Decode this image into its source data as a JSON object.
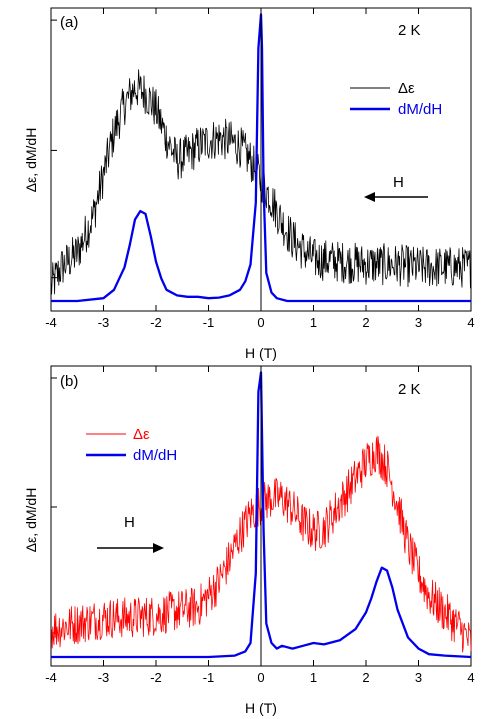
{
  "chart_data": [
    {
      "panel": "(a)",
      "type": "line",
      "xlabel": "H (T)",
      "ylabel": "Δε, dM/dH",
      "temperature": "2 K",
      "arrow_label": "H",
      "arrow_direction": "left",
      "xlim": [
        -4,
        4
      ],
      "ylim": [
        0,
        1
      ],
      "x_ticks": [
        "-4",
        "-3",
        "-2",
        "-1",
        "0",
        "1",
        "2",
        "3",
        "4"
      ],
      "y_ticks_shown": false,
      "grid": false,
      "legend_position": "top-right",
      "series": [
        {
          "name": "Δε",
          "color": "#000000",
          "noisy": true,
          "x": [
            -4.0,
            -3.8,
            -3.5,
            -3.2,
            -3.0,
            -2.8,
            -2.6,
            -2.4,
            -2.2,
            -2.0,
            -1.8,
            -1.6,
            -1.4,
            -1.2,
            -1.0,
            -0.8,
            -0.6,
            -0.4,
            -0.2,
            0.0,
            0.2,
            0.4,
            0.6,
            0.8,
            1.0,
            1.5,
            2.0,
            2.5,
            3.0,
            3.5,
            4.0
          ],
          "y": [
            0.05,
            0.12,
            0.17,
            0.3,
            0.45,
            0.6,
            0.7,
            0.76,
            0.74,
            0.68,
            0.58,
            0.5,
            0.52,
            0.55,
            0.57,
            0.58,
            0.57,
            0.55,
            0.5,
            0.43,
            0.36,
            0.28,
            0.22,
            0.18,
            0.15,
            0.14,
            0.13,
            0.13,
            0.12,
            0.12,
            0.12
          ]
        },
        {
          "name": "dM/dH",
          "color": "#0000ee",
          "noisy": false,
          "x": [
            -4.0,
            -3.5,
            -3.0,
            -2.8,
            -2.6,
            -2.5,
            -2.4,
            -2.3,
            -2.2,
            -2.1,
            -2.0,
            -1.9,
            -1.8,
            -1.6,
            -1.4,
            -1.2,
            -1.0,
            -0.8,
            -0.6,
            -0.4,
            -0.3,
            -0.2,
            -0.1,
            -0.05,
            0.0,
            0.02,
            0.05,
            0.1,
            0.2,
            0.3,
            0.5,
            1.0,
            2.0,
            3.0,
            4.0
          ],
          "y": [
            0.0,
            0.0,
            0.01,
            0.04,
            0.12,
            0.2,
            0.29,
            0.32,
            0.31,
            0.23,
            0.14,
            0.08,
            0.04,
            0.02,
            0.015,
            0.015,
            0.01,
            0.012,
            0.02,
            0.04,
            0.07,
            0.13,
            0.35,
            0.9,
            1.02,
            0.9,
            0.4,
            0.1,
            0.03,
            0.01,
            0.0,
            0.0,
            0.0,
            0.0,
            0.0
          ]
        }
      ]
    },
    {
      "panel": "(b)",
      "type": "line",
      "xlabel": "H (T)",
      "ylabel": "Δε, dM/dH",
      "temperature": "2 K",
      "arrow_label": "H",
      "arrow_direction": "right",
      "xlim": [
        -4,
        4
      ],
      "ylim": [
        0,
        1
      ],
      "x_ticks": [
        "-4",
        "-3",
        "-2",
        "-1",
        "0",
        "1",
        "2",
        "3",
        "4"
      ],
      "y_ticks_shown": false,
      "grid": false,
      "legend_position": "top-left",
      "series": [
        {
          "name": "Δε",
          "color": "#ff0000",
          "noisy": true,
          "x": [
            -4.0,
            -3.5,
            -3.0,
            -2.5,
            -2.0,
            -1.5,
            -1.2,
            -1.0,
            -0.8,
            -0.6,
            -0.4,
            -0.2,
            0.0,
            0.2,
            0.4,
            0.6,
            0.8,
            1.0,
            1.2,
            1.4,
            1.6,
            1.8,
            2.0,
            2.2,
            2.4,
            2.6,
            2.8,
            3.0,
            3.2,
            3.5,
            3.8,
            4.0
          ],
          "y": [
            0.1,
            0.12,
            0.14,
            0.14,
            0.15,
            0.17,
            0.18,
            0.22,
            0.27,
            0.35,
            0.44,
            0.51,
            0.55,
            0.57,
            0.57,
            0.53,
            0.48,
            0.45,
            0.46,
            0.52,
            0.58,
            0.64,
            0.7,
            0.74,
            0.68,
            0.55,
            0.4,
            0.3,
            0.22,
            0.16,
            0.1,
            0.05
          ]
        },
        {
          "name": "dM/dH",
          "color": "#0000ee",
          "noisy": false,
          "x": [
            -4.0,
            -3.0,
            -2.0,
            -1.0,
            -0.5,
            -0.3,
            -0.2,
            -0.1,
            -0.05,
            0.0,
            0.05,
            0.1,
            0.2,
            0.3,
            0.4,
            0.6,
            0.8,
            1.0,
            1.2,
            1.5,
            1.8,
            2.0,
            2.1,
            2.2,
            2.3,
            2.4,
            2.5,
            2.6,
            2.8,
            3.0,
            3.2,
            3.5,
            4.0
          ],
          "y": [
            0.0,
            0.0,
            0.0,
            0.0,
            0.005,
            0.02,
            0.05,
            0.3,
            0.95,
            1.02,
            0.45,
            0.12,
            0.05,
            0.03,
            0.04,
            0.03,
            0.04,
            0.05,
            0.045,
            0.06,
            0.1,
            0.16,
            0.21,
            0.27,
            0.32,
            0.31,
            0.25,
            0.17,
            0.07,
            0.03,
            0.01,
            0.005,
            0.0
          ]
        }
      ]
    }
  ]
}
